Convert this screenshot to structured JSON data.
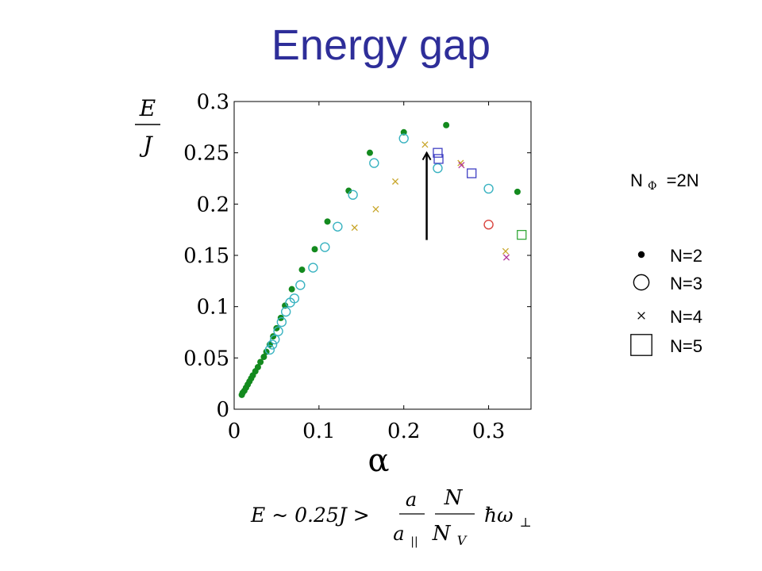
{
  "slide": {
    "title": "Energy gap"
  },
  "colors": {
    "title": "#2e2e99",
    "n2": "#138a1e",
    "n3": "#3ab3c1",
    "n4": "#c8a62a",
    "n4_alt": "#b2379b",
    "n5": "#3f3fc4",
    "n5_alt": "#34a83a",
    "red_marker": "#d9433d"
  },
  "chart_data": {
    "type": "scatter",
    "ylabel_top": "E",
    "ylabel_bottom": "J",
    "xlabel": "α",
    "xlim": [
      0,
      0.35
    ],
    "ylim": [
      0,
      0.3
    ],
    "xticks": [
      "0",
      "0.1",
      "0.2",
      "0.3"
    ],
    "yticks": [
      "0.3",
      "0.25",
      "0.2",
      "0.15",
      "0.1",
      "0.05",
      "0"
    ],
    "legend_header": {
      "main": "N",
      "sub": "Φ",
      "rest": "=2N"
    },
    "series": [
      {
        "name": "N=2",
        "marker": "dot",
        "color": "#138a1e",
        "points": [
          [
            0.009,
            0.014
          ],
          [
            0.01,
            0.016
          ],
          [
            0.012,
            0.018
          ],
          [
            0.014,
            0.021
          ],
          [
            0.016,
            0.024
          ],
          [
            0.018,
            0.027
          ],
          [
            0.02,
            0.03
          ],
          [
            0.022,
            0.033
          ],
          [
            0.025,
            0.037
          ],
          [
            0.028,
            0.041
          ],
          [
            0.031,
            0.046
          ],
          [
            0.035,
            0.051
          ],
          [
            0.038,
            0.056
          ],
          [
            0.042,
            0.063
          ],
          [
            0.046,
            0.071
          ],
          [
            0.05,
            0.079
          ],
          [
            0.055,
            0.089
          ],
          [
            0.06,
            0.101
          ],
          [
            0.068,
            0.117
          ],
          [
            0.08,
            0.136
          ],
          [
            0.095,
            0.156
          ],
          [
            0.11,
            0.183
          ],
          [
            0.135,
            0.213
          ],
          [
            0.16,
            0.25
          ],
          [
            0.2,
            0.27
          ],
          [
            0.25,
            0.277
          ],
          [
            0.334,
            0.212
          ]
        ]
      },
      {
        "name": "N=3",
        "marker": "circle",
        "color": "#3ab3c1",
        "points": [
          [
            0.042,
            0.058
          ],
          [
            0.045,
            0.063
          ],
          [
            0.048,
            0.068
          ],
          [
            0.052,
            0.076
          ],
          [
            0.056,
            0.085
          ],
          [
            0.061,
            0.095
          ],
          [
            0.066,
            0.104
          ],
          [
            0.071,
            0.108
          ],
          [
            0.078,
            0.121
          ],
          [
            0.093,
            0.138
          ],
          [
            0.107,
            0.158
          ],
          [
            0.122,
            0.178
          ],
          [
            0.14,
            0.209
          ],
          [
            0.165,
            0.24
          ],
          [
            0.2,
            0.264
          ],
          [
            0.24,
            0.235
          ],
          [
            0.3,
            0.215
          ]
        ]
      },
      {
        "name": "N=3",
        "marker": "circle",
        "color": "#d9433d",
        "points": [
          [
            0.3,
            0.18
          ]
        ]
      },
      {
        "name": "N=4",
        "marker": "cross",
        "color": "#c8a62a",
        "points": [
          [
            0.142,
            0.177
          ],
          [
            0.167,
            0.195
          ],
          [
            0.19,
            0.222
          ],
          [
            0.225,
            0.258
          ],
          [
            0.267,
            0.24
          ],
          [
            0.32,
            0.154
          ]
        ]
      },
      {
        "name": "N=4",
        "marker": "cross",
        "color": "#b2379b",
        "points": [
          [
            0.268,
            0.238
          ],
          [
            0.321,
            0.148
          ]
        ]
      },
      {
        "name": "N=5",
        "marker": "square",
        "color": "#3f3fc4",
        "points": [
          [
            0.24,
            0.25
          ],
          [
            0.241,
            0.244
          ],
          [
            0.28,
            0.23
          ]
        ]
      },
      {
        "name": "N=5",
        "marker": "square",
        "color": "#34a83a",
        "points": [
          [
            0.339,
            0.17
          ]
        ]
      }
    ],
    "annotation_arrow": {
      "x": 0.227,
      "from_y": 0.165,
      "to_y": 0.25
    },
    "legend": [
      {
        "marker": "dot",
        "label": "N=2"
      },
      {
        "marker": "circle",
        "label": "N=3"
      },
      {
        "marker": "cross",
        "label": "N=4"
      },
      {
        "marker": "square",
        "label": "N=5"
      }
    ],
    "formula": {
      "lhs": "E ~ 0.25J >",
      "frac1_num": "a",
      "frac1_den": "a",
      "frac1_den_sub": "||",
      "frac2_num": "N",
      "frac2_den": "N",
      "frac2_den_sub": "V",
      "rhs": "ħω",
      "rhs_sub": "⊥"
    }
  }
}
